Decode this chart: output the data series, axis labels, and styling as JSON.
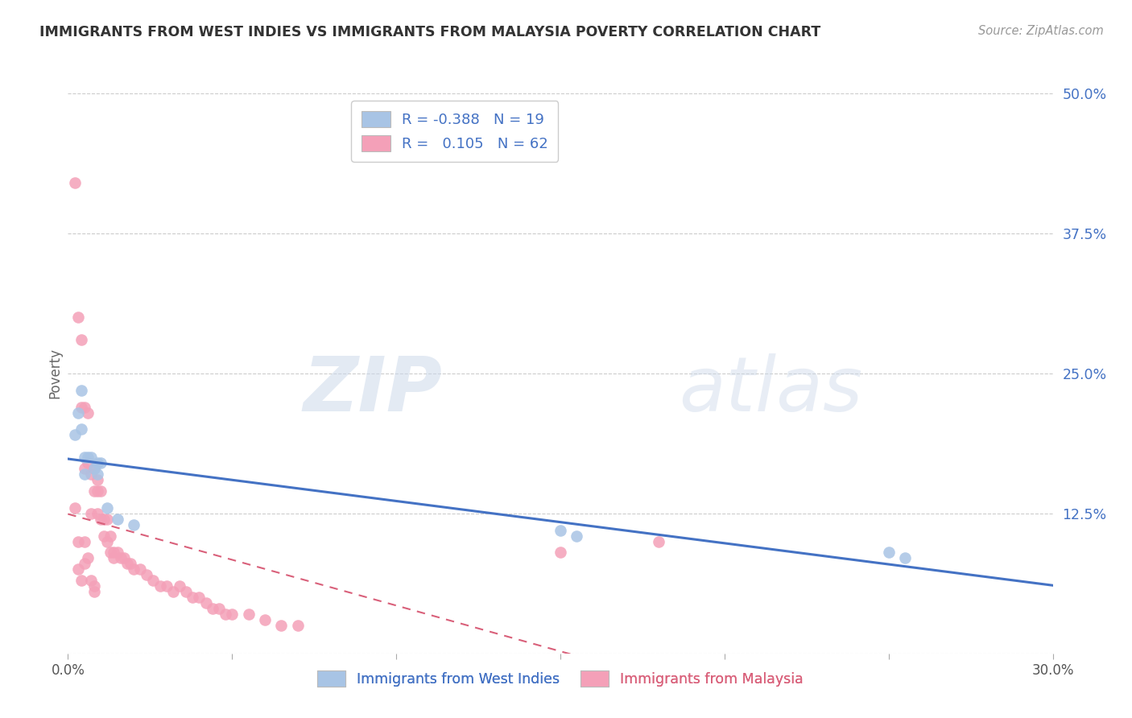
{
  "title": "IMMIGRANTS FROM WEST INDIES VS IMMIGRANTS FROM MALAYSIA POVERTY CORRELATION CHART",
  "source": "Source: ZipAtlas.com",
  "ylabel": "Poverty",
  "xlim": [
    0.0,
    0.3
  ],
  "ylim": [
    0.0,
    0.5
  ],
  "yticks": [
    0.0,
    0.125,
    0.25,
    0.375,
    0.5
  ],
  "ytick_labels": [
    "",
    "12.5%",
    "25.0%",
    "37.5%",
    "50.0%"
  ],
  "xtick_positions": [
    0.0,
    0.05,
    0.1,
    0.15,
    0.2,
    0.25,
    0.3
  ],
  "xtick_labels": [
    "0.0%",
    "",
    "",
    "",
    "",
    "",
    "30.0%"
  ],
  "west_indies_color": "#a8c4e5",
  "malaysia_color": "#f4a0b8",
  "west_indies_line_color": "#4472c4",
  "malaysia_line_color": "#d9607a",
  "west_indies_R": -0.388,
  "west_indies_N": 19,
  "malaysia_R": 0.105,
  "malaysia_N": 62,
  "legend_label_1": "Immigrants from West Indies",
  "legend_label_2": "Immigrants from Malaysia",
  "watermark_zip": "ZIP",
  "watermark_atlas": "atlas",
  "west_indies_x": [
    0.002,
    0.003,
    0.004,
    0.004,
    0.005,
    0.005,
    0.006,
    0.007,
    0.008,
    0.009,
    0.009,
    0.01,
    0.012,
    0.015,
    0.02,
    0.15,
    0.155,
    0.25,
    0.255
  ],
  "west_indies_y": [
    0.195,
    0.215,
    0.235,
    0.2,
    0.175,
    0.16,
    0.175,
    0.175,
    0.165,
    0.17,
    0.16,
    0.17,
    0.13,
    0.12,
    0.115,
    0.11,
    0.105,
    0.09,
    0.085
  ],
  "malaysia_x": [
    0.002,
    0.003,
    0.004,
    0.004,
    0.005,
    0.005,
    0.006,
    0.006,
    0.007,
    0.007,
    0.008,
    0.008,
    0.009,
    0.009,
    0.009,
    0.01,
    0.01,
    0.011,
    0.011,
    0.012,
    0.012,
    0.013,
    0.013,
    0.014,
    0.014,
    0.015,
    0.016,
    0.017,
    0.018,
    0.019,
    0.02,
    0.022,
    0.024,
    0.026,
    0.028,
    0.03,
    0.032,
    0.034,
    0.036,
    0.038,
    0.04,
    0.042,
    0.044,
    0.046,
    0.048,
    0.05,
    0.055,
    0.06,
    0.065,
    0.07,
    0.002,
    0.003,
    0.003,
    0.004,
    0.005,
    0.005,
    0.006,
    0.007,
    0.008,
    0.008,
    0.15,
    0.18
  ],
  "malaysia_y": [
    0.42,
    0.3,
    0.28,
    0.22,
    0.22,
    0.165,
    0.215,
    0.17,
    0.16,
    0.125,
    0.165,
    0.145,
    0.155,
    0.145,
    0.125,
    0.145,
    0.12,
    0.12,
    0.105,
    0.1,
    0.12,
    0.105,
    0.09,
    0.09,
    0.085,
    0.09,
    0.085,
    0.085,
    0.08,
    0.08,
    0.075,
    0.075,
    0.07,
    0.065,
    0.06,
    0.06,
    0.055,
    0.06,
    0.055,
    0.05,
    0.05,
    0.045,
    0.04,
    0.04,
    0.035,
    0.035,
    0.035,
    0.03,
    0.025,
    0.025,
    0.13,
    0.1,
    0.075,
    0.065,
    0.1,
    0.08,
    0.085,
    0.065,
    0.06,
    0.055,
    0.09,
    0.1
  ]
}
